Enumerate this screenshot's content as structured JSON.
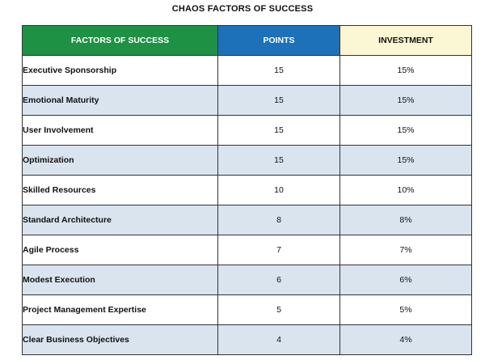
{
  "title": "CHAOS FACTORS OF SUCCESS",
  "colors": {
    "factor_header": "#1f9144",
    "points_header": "#1c71b8",
    "investment_header": "#fbf6d3",
    "alt_row": "#d9e4ef",
    "border": "#333333"
  },
  "headers": {
    "factor": "FACTORS OF SUCCESS",
    "points": "POINTS",
    "investment": "INVESTMENT"
  },
  "rows": [
    {
      "factor": "Executive Sponsorship",
      "points": "15",
      "investment": "15%"
    },
    {
      "factor": "Emotional Maturity",
      "points": "15",
      "investment": "15%"
    },
    {
      "factor": "User Involvement",
      "points": "15",
      "investment": "15%"
    },
    {
      "factor": "Optimization",
      "points": "15",
      "investment": "15%"
    },
    {
      "factor": "Skilled Resources",
      "points": "10",
      "investment": "10%"
    },
    {
      "factor": "Standard Architecture",
      "points": "8",
      "investment": "8%"
    },
    {
      "factor": "Agile Process",
      "points": "7",
      "investment": "7%"
    },
    {
      "factor": "Modest Execution",
      "points": "6",
      "investment": "6%"
    },
    {
      "factor": "Project Management Expertise",
      "points": "5",
      "investment": "5%"
    },
    {
      "factor": "Clear Business Objectives",
      "points": "4",
      "investment": "4%"
    }
  ]
}
